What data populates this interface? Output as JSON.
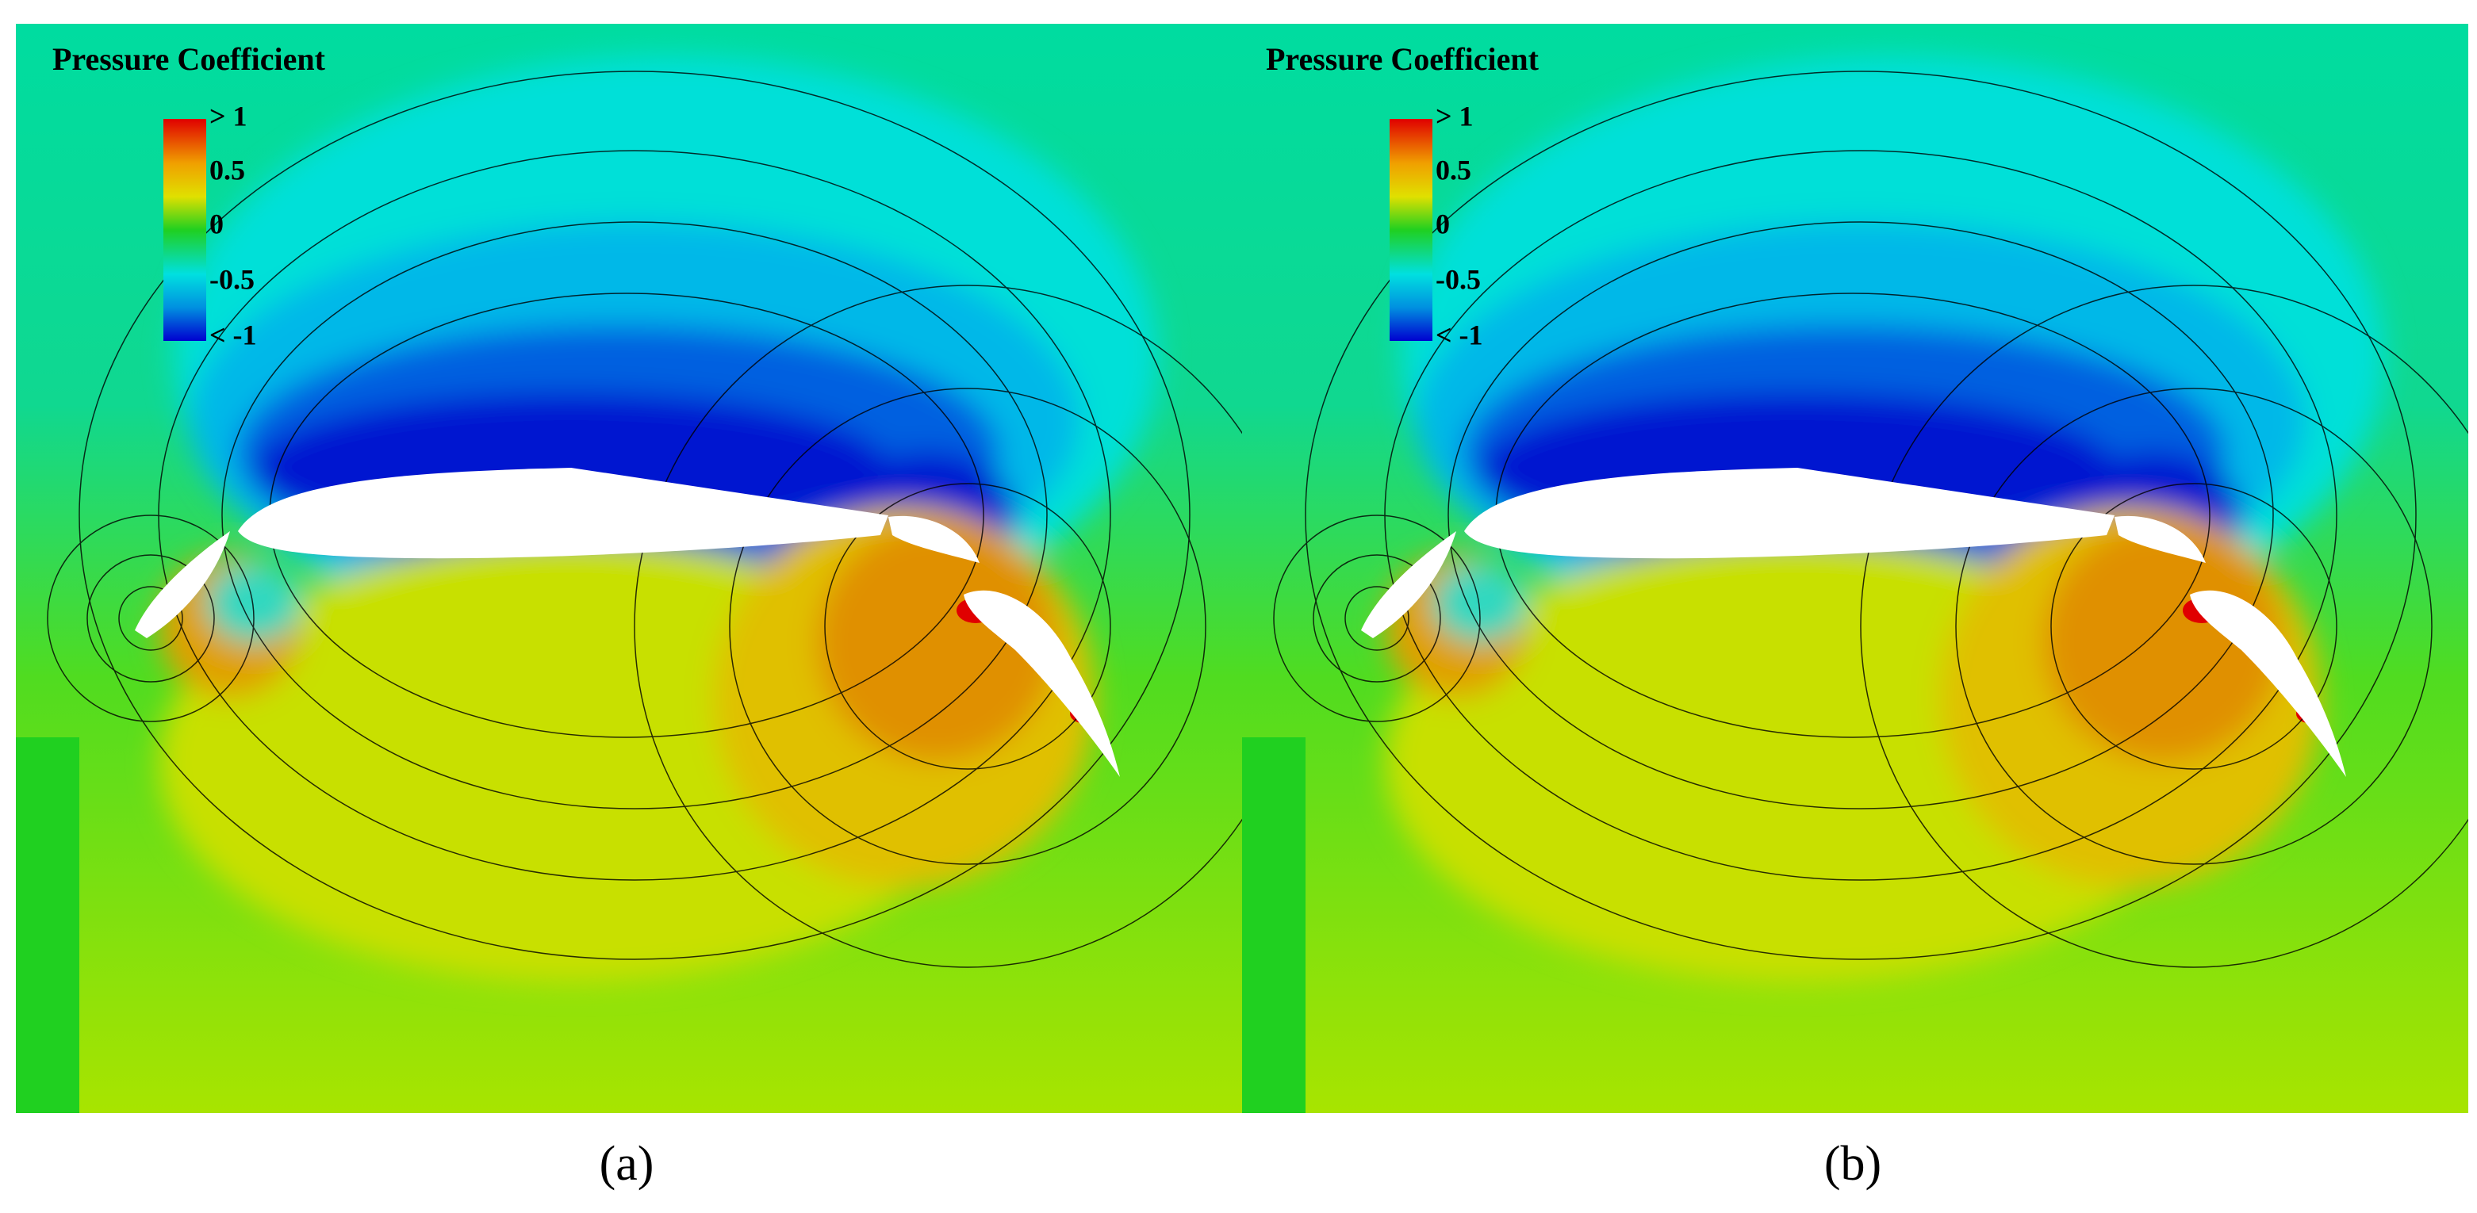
{
  "panels": [
    {
      "label": "(a)",
      "colorbar": {
        "title": "Pressure Coefficient",
        "ticks": [
          "> 1",
          "0.5",
          "0",
          "-0.5",
          "< -1"
        ]
      }
    },
    {
      "label": "(b)",
      "colorbar": {
        "title": "Pressure Coefficient",
        "ticks": [
          "> 1",
          "0.5",
          "0",
          "-0.5",
          "< -1"
        ]
      }
    }
  ]
}
